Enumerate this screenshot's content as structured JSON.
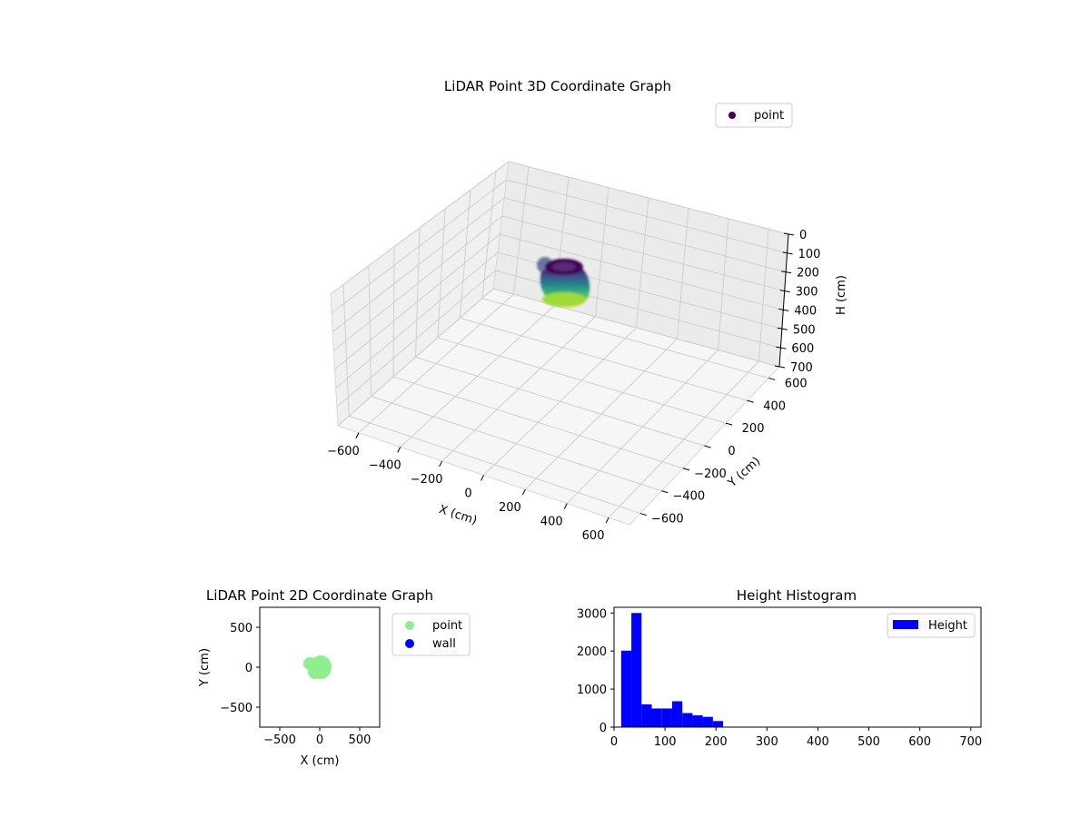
{
  "chart_data": [
    {
      "type": "scatter",
      "projection": "3d",
      "title": "LiDAR Point 3D Coordinate Graph",
      "xlabel": "X (cm)",
      "ylabel": "Y (cm)",
      "zlabel": "H (cm)",
      "xlim": [
        -700,
        700
      ],
      "ylim": [
        -700,
        700
      ],
      "zlim": [
        0,
        700
      ],
      "z_inverted": true,
      "x_ticks": [
        "−600",
        "−400",
        "−200",
        "0",
        "200",
        "400",
        "600"
      ],
      "y_ticks": [
        "−600",
        "−400",
        "−200",
        "0",
        "200",
        "400",
        "600"
      ],
      "z_ticks": [
        "0",
        "100",
        "200",
        "300",
        "400",
        "500",
        "600",
        "700"
      ],
      "colormap": "viridis",
      "legend": {
        "position": "top-right",
        "entries": [
          {
            "label": "point",
            "color": "#440154"
          }
        ]
      },
      "series": [
        {
          "name": "point",
          "cluster_center_xy": [
            0,
            0
          ],
          "cluster_radius_cm": 120,
          "height_range": [
            0,
            210
          ]
        }
      ]
    },
    {
      "type": "scatter",
      "title": "LiDAR Point 2D Coordinate Graph",
      "xlabel": "X (cm)",
      "ylabel": "Y (cm)",
      "xlim": [
        -750,
        750
      ],
      "ylim": [
        -750,
        750
      ],
      "x_ticks": [
        "−500",
        "0",
        "500"
      ],
      "y_ticks": [
        "−500",
        "0",
        "500"
      ],
      "legend": {
        "position": "outside-right",
        "entries": [
          {
            "label": "point",
            "color": "#90ee90"
          },
          {
            "label": "wall",
            "color": "#0000ff"
          }
        ]
      },
      "series": [
        {
          "name": "point",
          "color": "#90ee90",
          "cluster_center_xy": [
            0,
            0
          ],
          "cluster_radius_cm": 120
        },
        {
          "name": "wall",
          "color": "#0000ff",
          "values": []
        }
      ]
    },
    {
      "type": "bar",
      "subtype": "histogram",
      "title": "Height Histogram",
      "xlim": [
        0,
        720
      ],
      "ylim": [
        0,
        3150
      ],
      "x_ticks": [
        "0",
        "100",
        "200",
        "300",
        "400",
        "500",
        "600",
        "700"
      ],
      "y_ticks": [
        "0",
        "1000",
        "2000",
        "3000"
      ],
      "color": "#0000ff",
      "legend": {
        "position": "top-right",
        "entries": [
          {
            "label": "Height",
            "color": "#0000ff"
          }
        ]
      },
      "bin_edges": [
        14,
        34,
        54,
        74,
        94,
        114,
        134,
        154,
        174,
        194,
        214
      ],
      "values": [
        2010,
        3000,
        600,
        490,
        490,
        680,
        370,
        310,
        270,
        160
      ]
    }
  ]
}
